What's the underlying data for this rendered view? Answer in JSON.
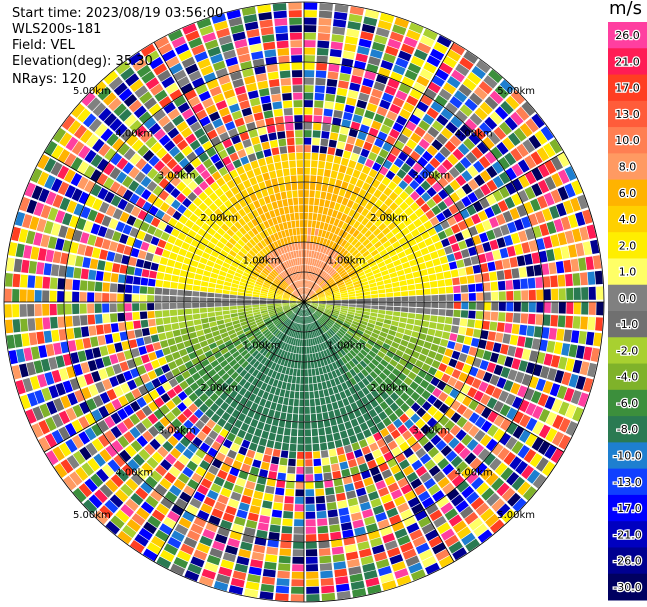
{
  "header": {
    "start_time": "Start time: 2023/08/19 03:56:00",
    "site": "WLS200s-181",
    "field": "Field: VEL",
    "elevation": "Elevation(deg): 35.30",
    "nrays": "NRays: 120"
  },
  "colorbar": {
    "unit": "m/s",
    "ticks": [
      "26.0",
      "21.0",
      "17.0",
      "13.0",
      "10.0",
      "8.0",
      "6.0",
      "4.0",
      "2.0",
      "1.0",
      "0.0",
      "-1.0",
      "-2.0",
      "-4.0",
      "-6.0",
      "-8.0",
      "-10.0",
      "-13.0",
      "-17.0",
      "-21.0",
      "-26.0",
      "-30.0"
    ],
    "colors": [
      "#ff3fa0",
      "#ff1c55",
      "#ff3e22",
      "#ff5c3a",
      "#ff7f52",
      "#ff9a62",
      "#ffb300",
      "#ffd000",
      "#ffee00",
      "#ffff66",
      "#808080",
      "#707070",
      "#a8d030",
      "#7fb22a",
      "#3c8f3c",
      "#2a7a52",
      "#1e7fd0",
      "#1040ff",
      "#0000ff",
      "#0000c0",
      "#000090",
      "#000060"
    ]
  },
  "chart_data": {
    "type": "ppi",
    "field": "VEL",
    "unit": "m/s",
    "n_rays": 120,
    "elevation_deg": 35.3,
    "range_ring_labels": [
      "1.00km",
      "2.00km",
      "3.00km",
      "4.00km",
      "5.00km"
    ],
    "range_rings_km": [
      1,
      2,
      3,
      4,
      5
    ],
    "max_range_km": 5.0,
    "vmin": -30.0,
    "vmax": 26.0,
    "north_half_pattern": "positive velocities (0 to 8 m/s) out to ~2.5 km",
    "south_half_pattern": "negative velocities (-1 to -8 m/s) out to ~2.5 km",
    "outer_pattern": "noisy, full color range beyond ~2.5 km"
  }
}
